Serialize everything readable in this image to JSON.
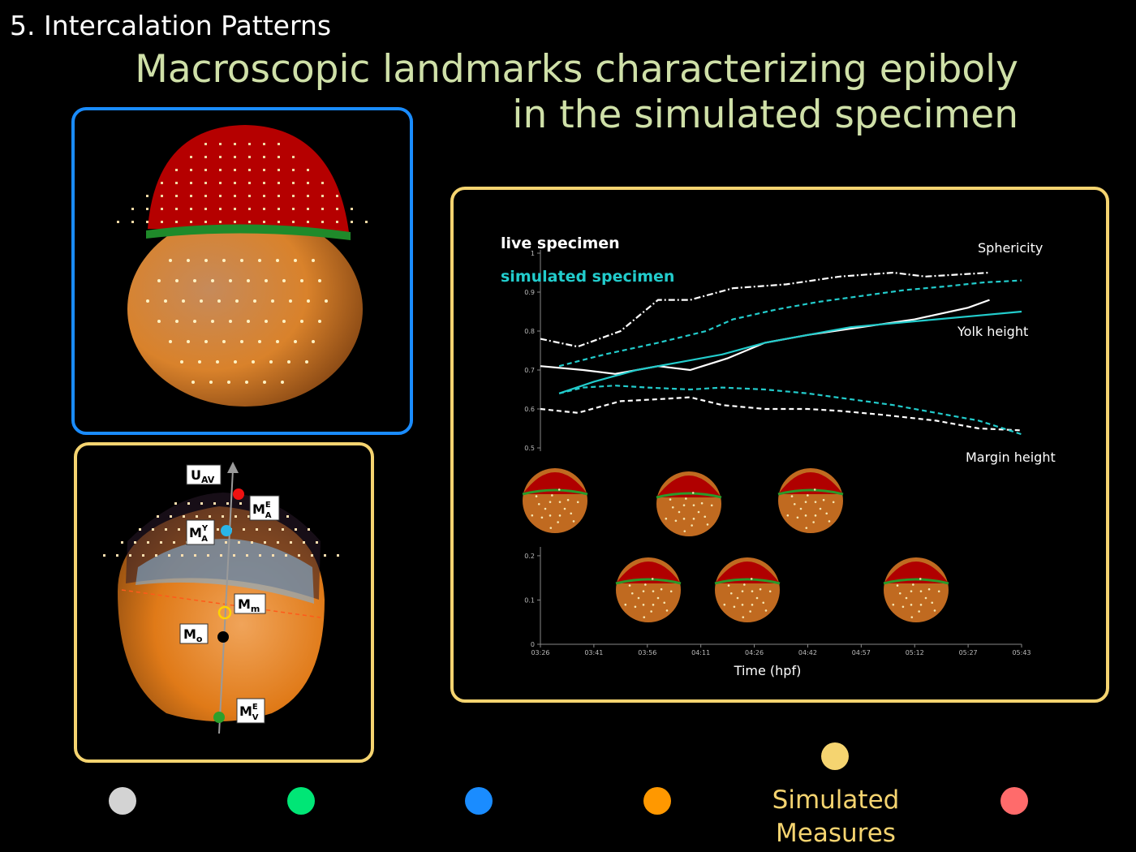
{
  "slide": {
    "section_title": "5. Intercalation Patterns",
    "title_line1": "Macroscopic landmarks characterizing epiboly",
    "title_line2": "in the simulated specimen"
  },
  "landmarks": {
    "u_av": "U",
    "u_av_sub": "AV",
    "ma_e": "M",
    "ma_e_sup": "E",
    "ma_e_sub": "A",
    "ma_y": "M",
    "ma_y_sup": "Y",
    "ma_y_sub": "A",
    "mm": "M",
    "mm_sub": "m",
    "mo": "M",
    "mo_sub": "o",
    "mv_e": "M",
    "mv_e_sup": "E",
    "mv_e_sub": "V"
  },
  "legend_dots": {
    "colors": [
      "#d3d3d3",
      "#00e676",
      "#1a8cff",
      "#ff9800",
      "#f5d470",
      "#ff6b6b"
    ],
    "caption_line1": "Simulated",
    "caption_line2": "Measures"
  },
  "chart_data": {
    "type": "line",
    "xlabel": "Time (hpf)",
    "x_ticks": [
      "03:26",
      "03:41",
      "03:56",
      "04:11",
      "04:26",
      "04:42",
      "04:57",
      "05:12",
      "05:27",
      "05:43"
    ],
    "upper_y_ticks": [
      "0.5",
      "0.6",
      "0.7",
      "0.8",
      "0.9",
      "1"
    ],
    "upper_ylim": [
      0.5,
      1.0
    ],
    "lower_y_ticks": [
      "0",
      "0.1",
      "0.2"
    ],
    "lower_ylim": [
      0,
      0.22
    ],
    "legend": {
      "live": "live specimen",
      "simulated": "simulated specimen"
    },
    "colors": {
      "live": "#ffffff",
      "simulated": "#22cccc"
    },
    "annotations": {
      "sphericity": "Sphericity",
      "yolk_height": "Yolk height",
      "margin_height": "Margin height"
    },
    "series": [
      {
        "name": "Sphericity (live)",
        "style": "dashdot",
        "color": "#ffffff",
        "x": [
          0,
          0.7,
          1.5,
          2.2,
          2.8,
          3.6,
          4.6,
          5.6,
          6.6,
          7.2,
          8.4
        ],
        "y": [
          0.78,
          0.76,
          0.8,
          0.88,
          0.88,
          0.91,
          0.92,
          0.94,
          0.95,
          0.94,
          0.95
        ]
      },
      {
        "name": "Sphericity (simulated)",
        "style": "dashed",
        "color": "#22cccc",
        "x": [
          0.35,
          1.2,
          2.2,
          3.1,
          3.6,
          4.4,
          5.2,
          6.0,
          6.8,
          7.6,
          8.3,
          9.0
        ],
        "y": [
          0.71,
          0.74,
          0.77,
          0.8,
          0.83,
          0.855,
          0.875,
          0.89,
          0.905,
          0.915,
          0.925,
          0.93
        ]
      },
      {
        "name": "Yolk height (live)",
        "style": "solid",
        "color": "#ffffff",
        "x": [
          0,
          0.8,
          1.4,
          2.2,
          2.8,
          3.5,
          4.2,
          5.0,
          6.0,
          7.0,
          8.0,
          8.4
        ],
        "y": [
          0.71,
          0.7,
          0.69,
          0.71,
          0.7,
          0.73,
          0.77,
          0.79,
          0.81,
          0.83,
          0.86,
          0.88
        ]
      },
      {
        "name": "Yolk height (simulated)",
        "style": "solid",
        "color": "#22cccc",
        "x": [
          0.35,
          1.0,
          1.8,
          2.6,
          3.4,
          4.2,
          5.0,
          5.8,
          6.6,
          7.4,
          8.2,
          9.0
        ],
        "y": [
          0.64,
          0.67,
          0.7,
          0.72,
          0.74,
          0.77,
          0.79,
          0.81,
          0.82,
          0.83,
          0.84,
          0.85
        ]
      },
      {
        "name": "Margin height (live)",
        "style": "dashed",
        "color": "#ffffff",
        "x": [
          0,
          0.7,
          1.5,
          2.2,
          2.8,
          3.4,
          4.2,
          5.0,
          5.6,
          6.4,
          7.4,
          8.2,
          9.0
        ],
        "y": [
          0.6,
          0.59,
          0.62,
          0.625,
          0.63,
          0.61,
          0.6,
          0.6,
          0.595,
          0.585,
          0.57,
          0.55,
          0.545
        ]
      },
      {
        "name": "Margin height (simulated)",
        "style": "dashed",
        "color": "#22cccc",
        "x": [
          0.35,
          0.8,
          1.4,
          2.0,
          2.8,
          3.4,
          4.2,
          5.0,
          5.8,
          6.6,
          7.4,
          8.2,
          9.0
        ],
        "y": [
          0.64,
          0.655,
          0.66,
          0.655,
          0.65,
          0.655,
          0.65,
          0.64,
          0.625,
          0.61,
          0.59,
          0.57,
          0.535
        ]
      }
    ]
  }
}
